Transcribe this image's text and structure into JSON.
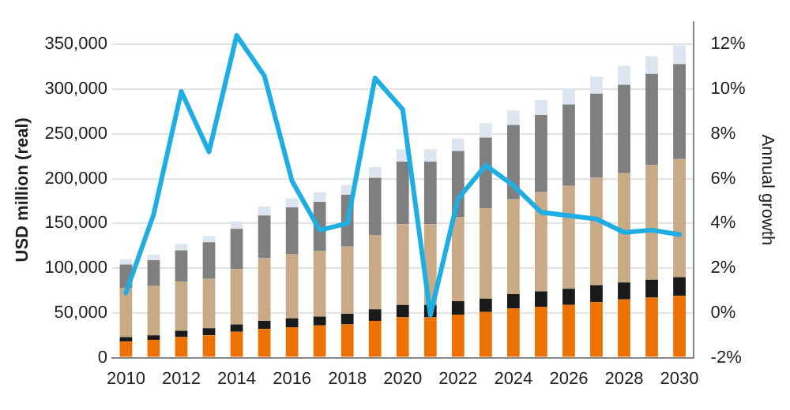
{
  "chart_data": {
    "type": "bar",
    "stacked": true,
    "ylabel": "USD million (real)",
    "y2label": "Annual growth",
    "grid": "y",
    "legend": false,
    "categories": [
      "2010",
      null,
      "2012",
      null,
      "2014",
      null,
      "2016",
      null,
      "2018",
      null,
      "2020",
      null,
      "2022",
      null,
      "2024",
      null,
      "2026",
      null,
      "2028",
      null,
      "2030"
    ],
    "ylim": [
      0,
      375000
    ],
    "yticks": [
      0,
      {
        "value": 50000,
        "label": "50,000"
      },
      {
        "value": 100000,
        "label": "100,000"
      },
      {
        "value": 150000,
        "label": "150,000"
      },
      {
        "value": 200000,
        "label": "200,000"
      },
      {
        "value": 250000,
        "label": "250,000"
      },
      {
        "value": 300000,
        "label": "300,000"
      },
      {
        "value": 350000,
        "label": "350,000"
      }
    ],
    "y2lim": [
      -2,
      13
    ],
    "y2ticks": [
      {
        "value": -2,
        "label": "-2%"
      },
      {
        "value": 0,
        "label": "0%"
      },
      {
        "value": 2,
        "label": "2%"
      },
      {
        "value": 4,
        "label": "4%"
      },
      {
        "value": 6,
        "label": "6%"
      },
      {
        "value": 8,
        "label": "8%"
      },
      {
        "value": 10,
        "label": "10%"
      },
      {
        "value": 12,
        "label": "12%"
      }
    ],
    "series": [
      {
        "color": "#ee7203",
        "values": [
          18000,
          20000,
          23000,
          25000,
          29000,
          32000,
          34000,
          36000,
          37000,
          41000,
          45000,
          45000,
          48000,
          51000,
          55000,
          57000,
          59000,
          62000,
          65000,
          67000,
          69000
        ]
      },
      {
        "color": "#1a1a1a",
        "values": [
          5000,
          5000,
          7000,
          8000,
          8000,
          9000,
          10000,
          10000,
          12000,
          13000,
          14000,
          14000,
          15000,
          15000,
          16000,
          17000,
          18000,
          19000,
          19000,
          20000,
          21000
        ]
      },
      {
        "color": "#c9aa86",
        "values": [
          55000,
          55000,
          55000,
          55000,
          62000,
          70000,
          72000,
          73000,
          75000,
          83000,
          90000,
          90000,
          94000,
          101000,
          106000,
          111000,
          115000,
          120000,
          122000,
          128000,
          132000
        ]
      },
      {
        "color": "#7f7f7f",
        "values": [
          26000,
          29000,
          35000,
          41000,
          45000,
          48000,
          52000,
          55000,
          58000,
          64000,
          70000,
          70000,
          74000,
          79000,
          83000,
          86000,
          91000,
          94000,
          99000,
          102000,
          106000
        ]
      },
      {
        "color": "#dde6f0",
        "values": [
          6000,
          6000,
          7000,
          7000,
          8000,
          10000,
          10000,
          11000,
          11000,
          12000,
          14000,
          14000,
          14000,
          16000,
          16000,
          17000,
          18000,
          19000,
          21000,
          20000,
          21000
        ]
      },
      {
        "type": "line",
        "axis": "y2",
        "color": "#1eaee4",
        "values": [
          0.9,
          4.4,
          9.9,
          7.2,
          12.4,
          10.6,
          5.9,
          3.7,
          4.0,
          10.5,
          9.1,
          -0.1,
          5.1,
          6.6,
          5.7,
          4.5,
          4.35,
          4.2,
          3.6,
          3.7,
          3.5
        ]
      }
    ]
  }
}
